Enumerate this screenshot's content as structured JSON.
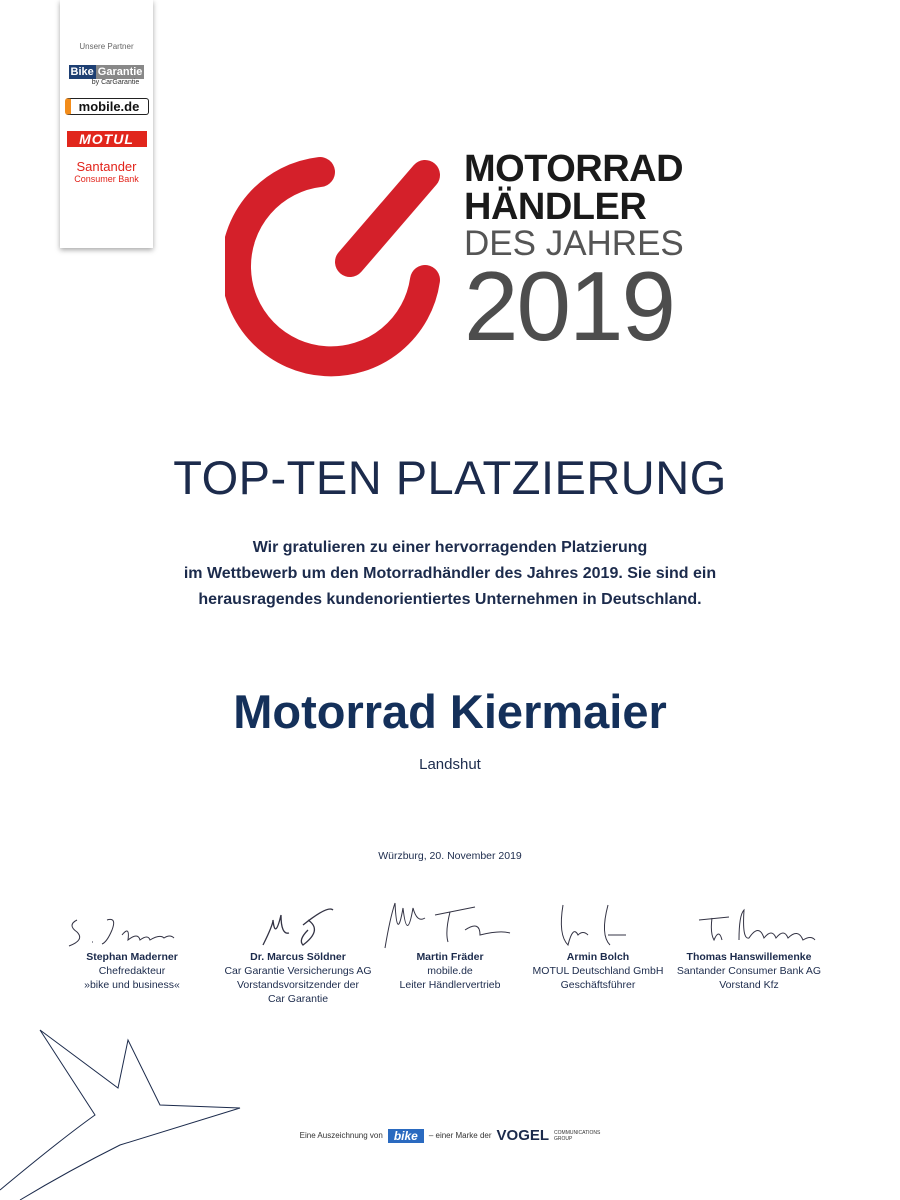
{
  "partners": {
    "label": "Unsere Partner",
    "logos": [
      {
        "name": "Bike",
        "name2": "Garantie",
        "sub": "by CarGarantie"
      },
      {
        "name": "mobile.de"
      },
      {
        "name": "MOTUL"
      },
      {
        "name": "Santander",
        "sub": "Consumer Bank"
      }
    ]
  },
  "brand": {
    "line1": "MOTORRAD",
    "line2": "HÄNDLER",
    "line3": "DES JAHRES",
    "year": "2019",
    "accent": "#d4202a"
  },
  "title": "TOP-TEN PLATZIERUNG",
  "intro": [
    "Wir gratulieren zu einer hervorragenden Platzierung",
    "im Wettbewerb um den Motorradhändler des Jahres 2019. Sie sind ein",
    "herausragendes kundenorientiertes Unternehmen in Deutschland."
  ],
  "dealer": "Motorrad Kiermaier",
  "city": "Landshut",
  "date": "Würzburg, 20. November 2019",
  "signatories": [
    {
      "name": "Stephan Maderner",
      "l1": "Chefredakteur",
      "l2": "»bike und business«",
      "l3": ""
    },
    {
      "name": "Dr. Marcus Söldner",
      "l1": "Car Garantie Versicherungs AG",
      "l2": "Vorstandsvorsitzender der",
      "l3": "Car Garantie"
    },
    {
      "name": "Martin Fräder",
      "l1": "mobile.de",
      "l2": "Leiter Händlervertrieb",
      "l3": ""
    },
    {
      "name": "Armin Bolch",
      "l1": "MOTUL Deutschland GmbH",
      "l2": "Geschäftsführer",
      "l3": ""
    },
    {
      "name": "Thomas Hanswillemenke",
      "l1": "Santander Consumer Bank AG",
      "l2": "Vorstand Kfz",
      "l3": ""
    }
  ],
  "footer": {
    "pre": "Eine Auszeichnung von",
    "bike": "bike",
    "mid": "– einer Marke der",
    "vogel": "VOGEL",
    "vogel_sub1": "COMMUNICATIONS",
    "vogel_sub2": "GROUP"
  }
}
